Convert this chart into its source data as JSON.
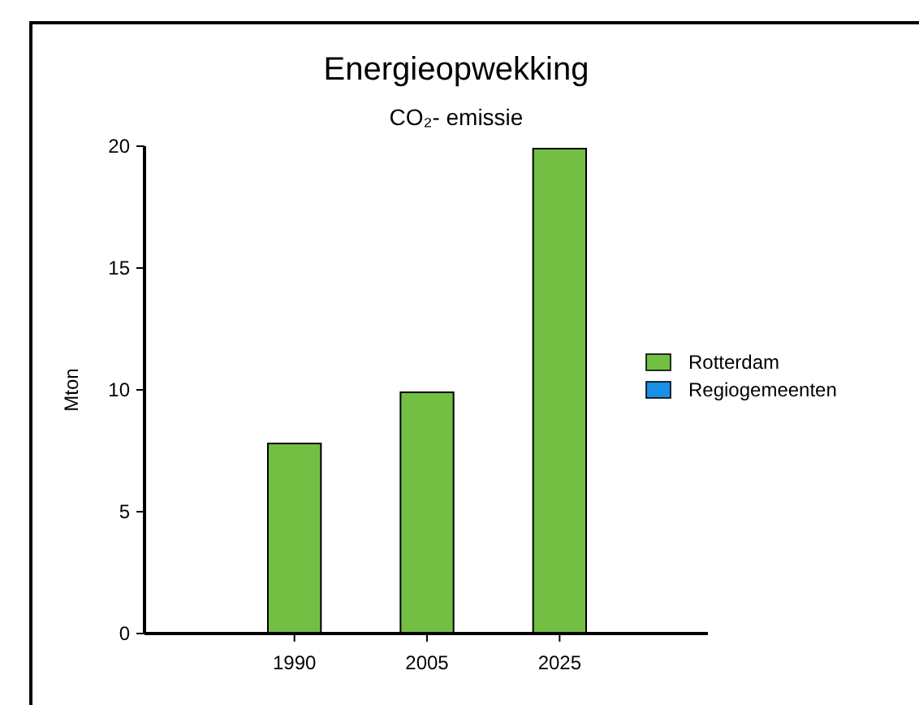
{
  "chart_data": {
    "type": "bar",
    "title": "Energieopwekking",
    "subtitle": "CO₂- emissie",
    "ylabel": "Mton",
    "categories": [
      "1990",
      "2005",
      "2025"
    ],
    "stacked": true,
    "series": [
      {
        "name": "Rotterdam",
        "color": "#72bf44",
        "values": [
          7.8,
          9.9,
          19.9
        ]
      },
      {
        "name": "Regiogemeenten",
        "color": "#1a8fe8",
        "values": [
          null,
          null,
          null
        ]
      }
    ],
    "ylim": [
      0,
      20
    ],
    "yticks": [
      0,
      5,
      10,
      15,
      20
    ],
    "grid": false,
    "legend": "right"
  }
}
